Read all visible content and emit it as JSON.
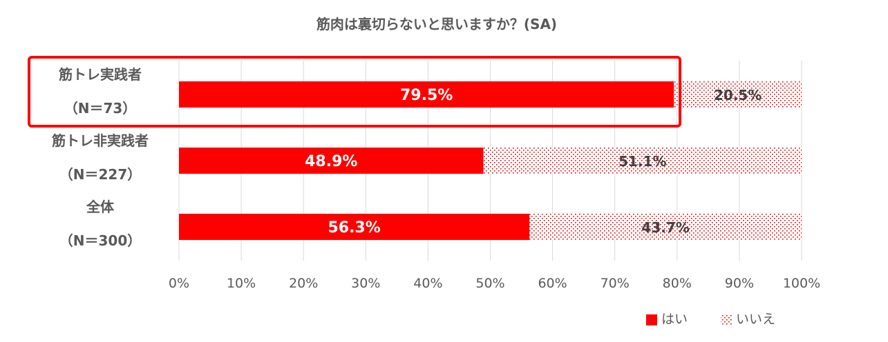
{
  "chart_data": {
    "type": "bar",
    "orientation": "horizontal",
    "stacked": true,
    "title": "筋肉は裏切らないと思いますか？(SA)",
    "categories": [
      {
        "line1": "筋トレ実践者",
        "line2": "（N＝73）"
      },
      {
        "line1": "筋トレ非実践者",
        "line2": "（N＝227）"
      },
      {
        "line1": "全体",
        "line2": "（N＝300）"
      }
    ],
    "series": [
      {
        "name": "はい",
        "values": [
          79.5,
          48.9,
          56.3
        ],
        "labels": [
          "79.5%",
          "48.9%",
          "56.3%"
        ],
        "color": "#ff0000",
        "pattern": "solid"
      },
      {
        "name": "いいえ",
        "values": [
          20.5,
          51.1,
          43.7
        ],
        "labels": [
          "20.5%",
          "51.1%",
          "43.7%"
        ],
        "color": "#ff0000",
        "pattern": "dotted"
      }
    ],
    "xlim": [
      0,
      100
    ],
    "xticks": [
      "0%",
      "10%",
      "20%",
      "30%",
      "40%",
      "50%",
      "60%",
      "70%",
      "80%",
      "90%",
      "100%"
    ],
    "grid": true,
    "legend_position": "bottom-right",
    "highlight": {
      "category_index": 0,
      "color": "#ff0000"
    }
  }
}
